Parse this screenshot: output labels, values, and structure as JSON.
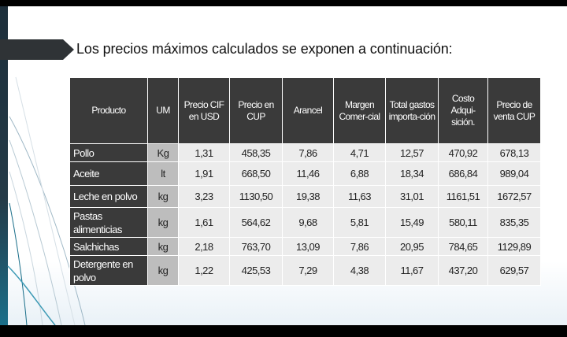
{
  "title": "Los precios máximos calculados se exponen a continuación:",
  "table": {
    "headers": [
      "Producto",
      "UM",
      "Precio CIF en USD",
      "Precio en CUP",
      "Arancel",
      "Margen Comer-cial",
      "Total gastos importa-ción",
      "Costo Adqui-sición.",
      "Precio de venta CUP"
    ],
    "rows": [
      {
        "producto": "Pollo",
        "um": "Kg",
        "cif": "1,31",
        "cup": "458,35",
        "arancel": "7,86",
        "margen": "4,71",
        "gastos": "12,57",
        "costo": "470,92",
        "venta": "678,13"
      },
      {
        "producto": "Aceite",
        "um": "lt",
        "cif": "1,91",
        "cup": "668,50",
        "arancel": "11,46",
        "margen": "6,88",
        "gastos": "18,34",
        "costo": "686,84",
        "venta": "989,04"
      },
      {
        "producto": "Leche en polvo",
        "um": "kg",
        "cif": "3,23",
        "cup": "1130,50",
        "arancel": "19,38",
        "margen": "11,63",
        "gastos": "31,01",
        "costo": "1161,51",
        "venta": "1672,57"
      },
      {
        "producto": "Pastas alimenticias",
        "um": "kg",
        "cif": "1,61",
        "cup": "564,62",
        "arancel": "9,68",
        "margen": "5,81",
        "gastos": "15,49",
        "costo": "580,11",
        "venta": "835,35"
      },
      {
        "producto": "Salchichas",
        "um": "kg",
        "cif": "2,18",
        "cup": "763,70",
        "arancel": "13,09",
        "margen": "7,86",
        "gastos": "20,95",
        "costo": "784,65",
        "venta": "1129,89"
      },
      {
        "producto": "Detergente en polvo",
        "um": "kg",
        "cif": "1,22",
        "cup": "425,53",
        "arancel": "7,29",
        "margen": "4,38",
        "gastos": "11,67",
        "costo": "437,20",
        "venta": "629,57"
      }
    ]
  },
  "colors": {
    "header_bg": "#3a3a3a",
    "um_bg": "#bdbdbd",
    "value_bg": "#ececec",
    "accent": "#1b6f8a"
  }
}
